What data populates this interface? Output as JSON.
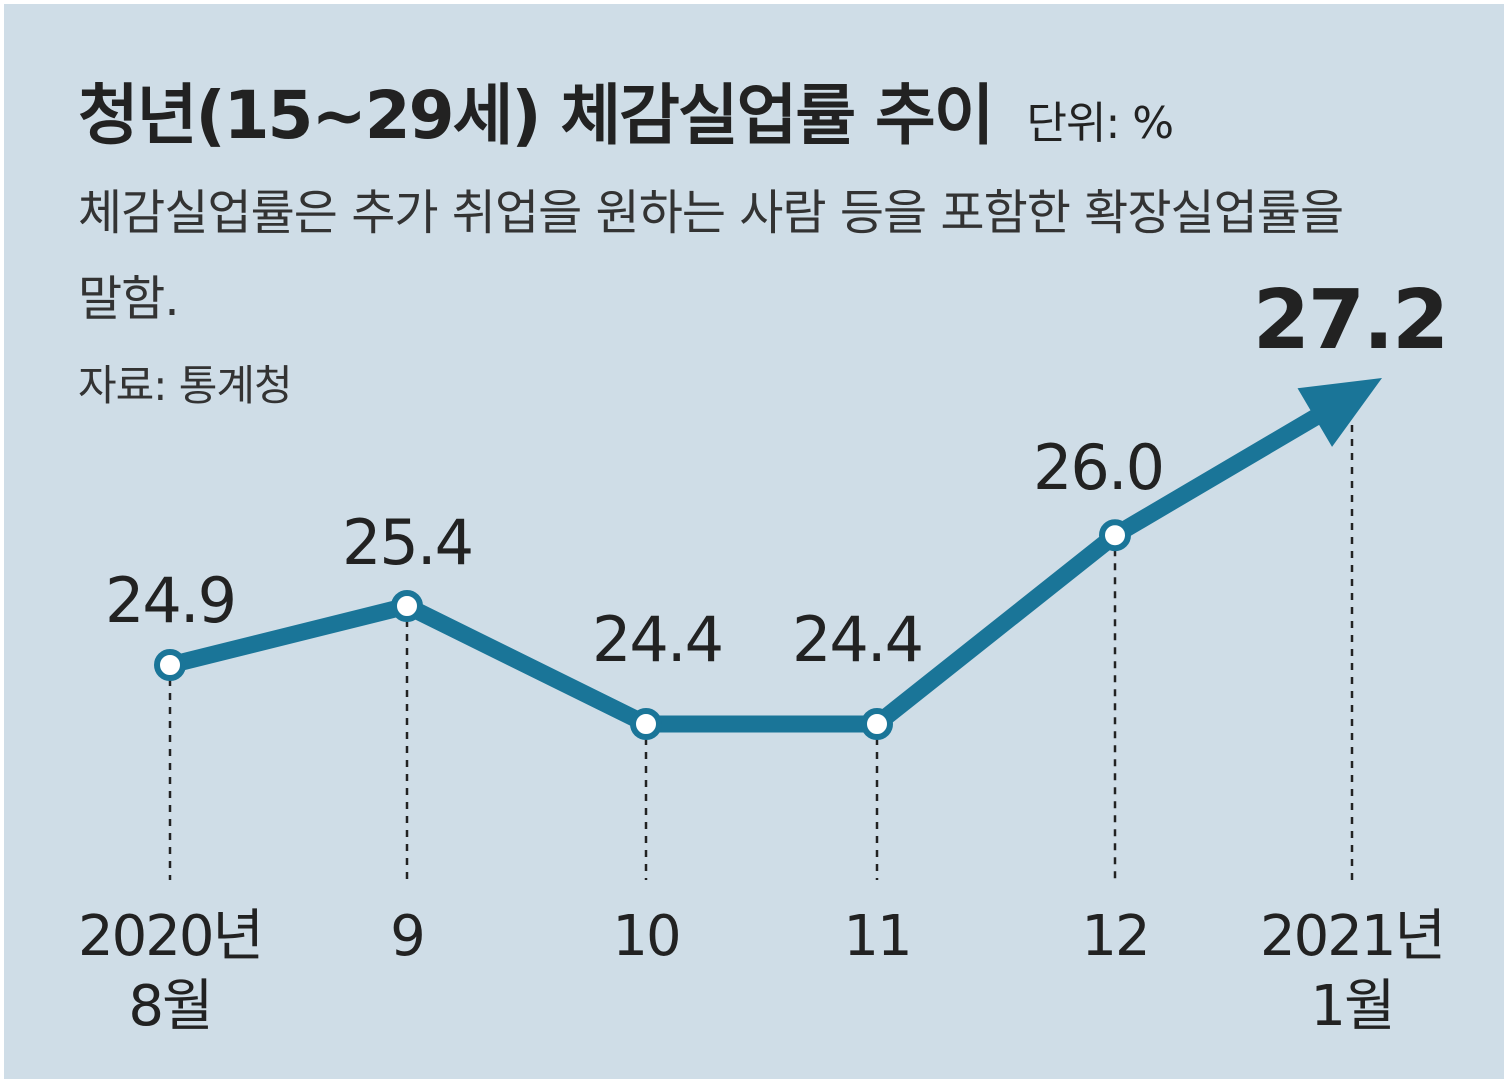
{
  "header": {
    "title": "청년(15~29세) 체감실업률 추이",
    "unit": "단위: %",
    "description": "체감실업률은 추가 취업을 원하는 사람 등을 포함한 확장실업률을 말함.",
    "source": "자료: 통계청"
  },
  "chart_data": {
    "type": "line",
    "title": "청년(15~29세) 체감실업률 추이",
    "unit": "%",
    "categories": [
      "2020년 8월",
      "9",
      "10",
      "11",
      "12",
      "2021년 1월"
    ],
    "tick_labels": [
      [
        "2020년",
        "8월"
      ],
      [
        "9"
      ],
      [
        "10"
      ],
      [
        "11"
      ],
      [
        "12"
      ],
      [
        "2021년",
        "1월"
      ]
    ],
    "series": [
      {
        "values": [
          24.9,
          25.4,
          24.4,
          24.4,
          26.0,
          27.2
        ]
      }
    ],
    "data_labels": [
      "24.9",
      "25.4",
      "24.4",
      "24.4",
      "26.0",
      "27.2"
    ],
    "last_point_marker": "arrow",
    "grid": false,
    "colors": {
      "line": "#1a7598",
      "background": "#cfdde7",
      "text": "#222222"
    }
  }
}
